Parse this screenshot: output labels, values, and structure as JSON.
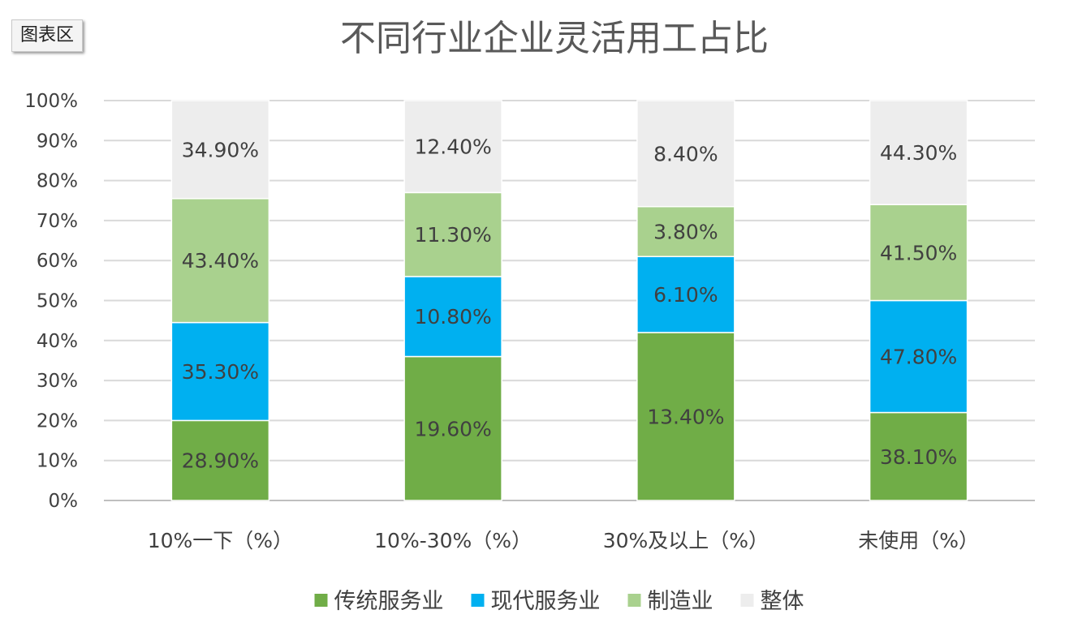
{
  "chart_area_tag": "图表区",
  "chart_data": {
    "type": "bar",
    "stacked": true,
    "title": "不同行业企业灵活用工占比",
    "categories": [
      "10%一下（%）",
      "10%-30%（%）",
      "30%及以上（%）",
      "未使用（%）"
    ],
    "series": [
      {
        "name": "传统服务业",
        "color": "#70ad47",
        "values": [
          20,
          36,
          42,
          22
        ],
        "labels": [
          "28.90%",
          "19.60%",
          "13.40%",
          "38.10%"
        ]
      },
      {
        "name": "现代服务业",
        "color": "#00b0f0",
        "values": [
          24.5,
          20,
          19,
          28
        ],
        "labels": [
          "35.30%",
          "10.80%",
          "6.10%",
          "47.80%"
        ]
      },
      {
        "name": "制造业",
        "color": "#a9d18e",
        "values": [
          31,
          21,
          12.5,
          24
        ],
        "labels": [
          "43.40%",
          "11.30%",
          "3.80%",
          "41.50%"
        ]
      },
      {
        "name": "整体",
        "color": "#ededed",
        "values": [
          24.5,
          23,
          26.5,
          26
        ],
        "labels": [
          "34.90%",
          "12.40%",
          "8.40%",
          "44.30%"
        ]
      }
    ],
    "yticks": [
      "0%",
      "10%",
      "20%",
      "30%",
      "40%",
      "50%",
      "60%",
      "70%",
      "80%",
      "90%",
      "100%"
    ],
    "ylim": [
      0,
      100
    ],
    "grid": true,
    "legend_position": "bottom"
  }
}
